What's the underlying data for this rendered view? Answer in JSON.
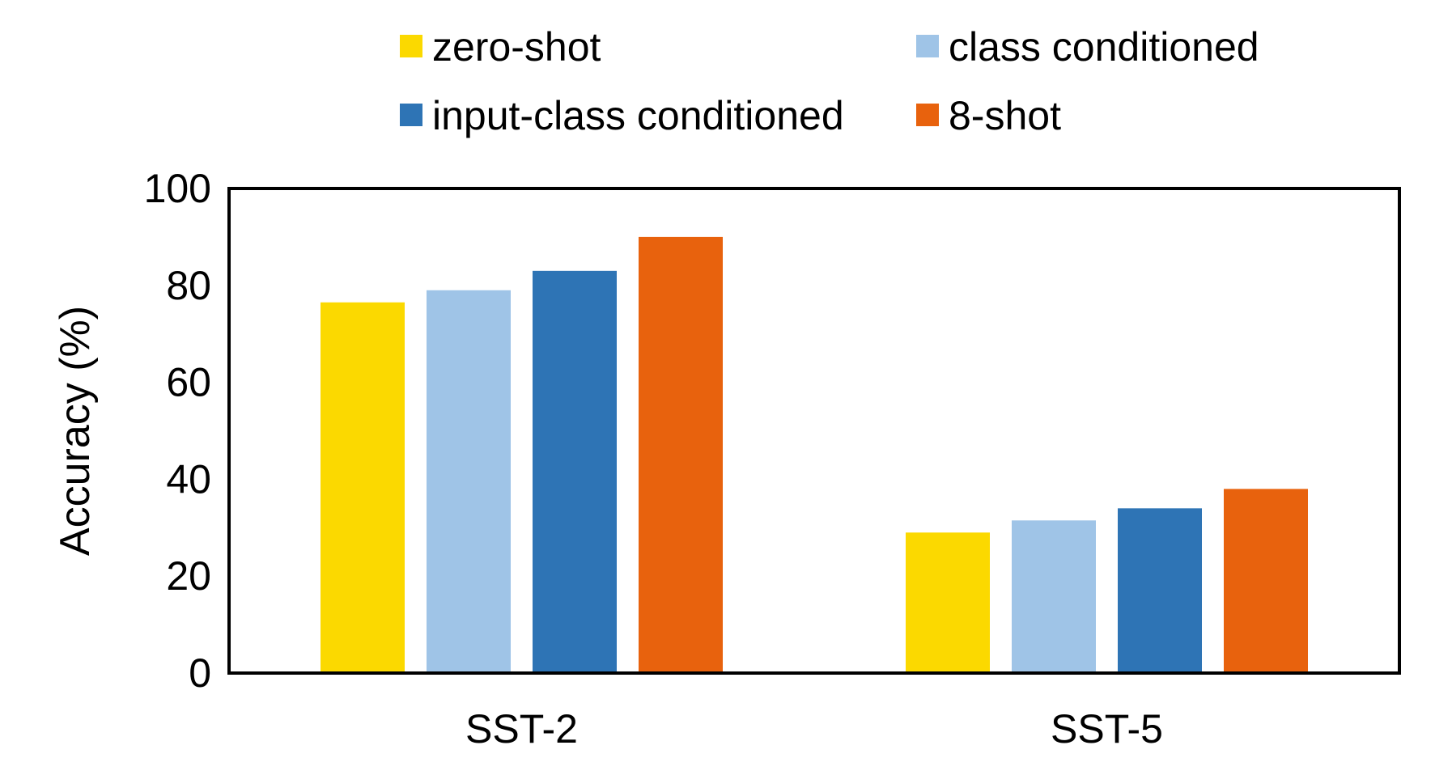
{
  "chart_data": {
    "type": "bar",
    "title": "",
    "xlabel": "",
    "ylabel": "Accuracy (%)",
    "ylim": [
      0,
      100
    ],
    "yticks": [
      "0",
      "20",
      "40",
      "60",
      "80",
      "100"
    ],
    "grid": false,
    "legend_position": "top",
    "categories": [
      "SST-2",
      "SST-5"
    ],
    "series": [
      {
        "name": "zero-shot",
        "color": "#FBD900",
        "values": [
          76.5,
          29.0
        ]
      },
      {
        "name": "class conditioned",
        "color": "#9FC4E7",
        "values": [
          79.0,
          31.5
        ]
      },
      {
        "name": "input-class conditioned",
        "color": "#2E74B5",
        "values": [
          83.0,
          34.0
        ]
      },
      {
        "name": "8-shot",
        "color": "#E8620D",
        "values": [
          90.0,
          38.0
        ]
      }
    ]
  }
}
